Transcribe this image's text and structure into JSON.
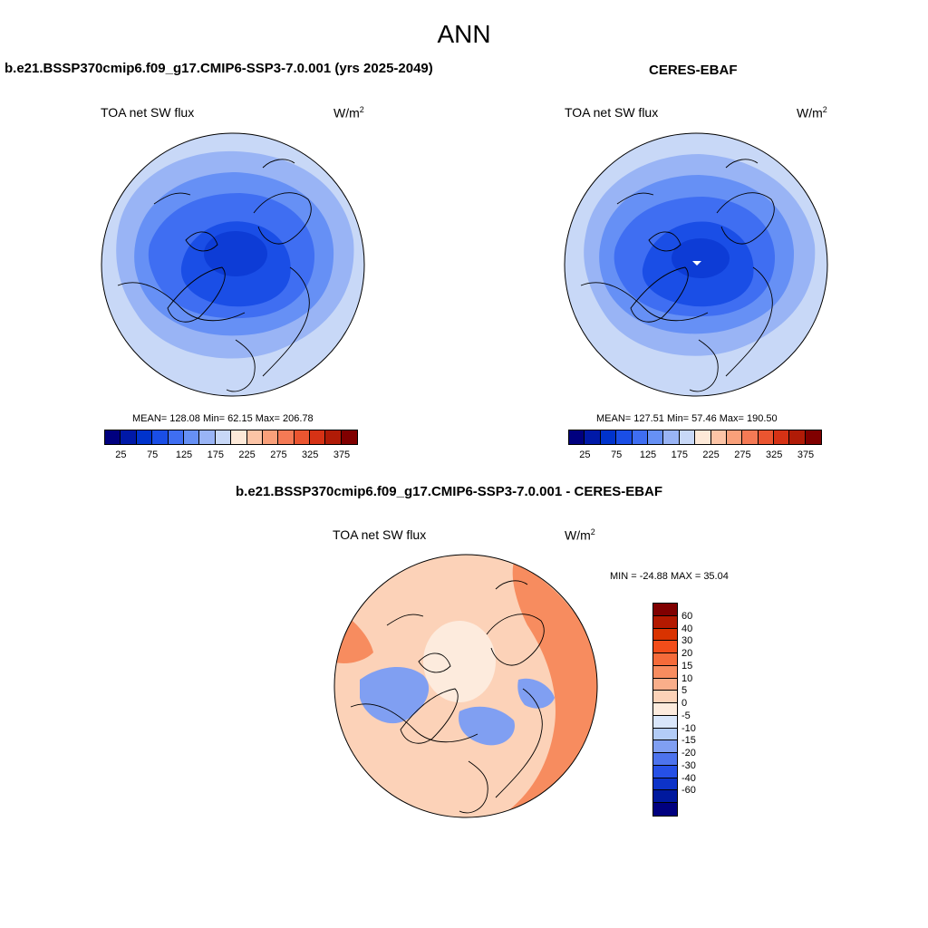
{
  "main_title": "ANN",
  "panels": {
    "model": {
      "title": "b.e21.BSSP370cmip6.f09_g17.CMIP6-SSP3-7.0.001 (yrs 2025-2049)",
      "variable": "TOA net SW flux",
      "units_base": "W/m",
      "units_exp": "2",
      "stats": "MEAN= 128.08  Min=  62.15  Max= 206.78"
    },
    "obs": {
      "title": "CERES-EBAF",
      "variable": "TOA net SW flux",
      "units_base": "W/m",
      "units_exp": "2",
      "stats": "MEAN= 127.51  Min=  57.46  Max= 190.50"
    },
    "diff": {
      "title": "b.e21.BSSP370cmip6.f09_g17.CMIP6-SSP3-7.0.001 - CERES-EBAF",
      "variable": "TOA net SW flux",
      "units_base": "W/m",
      "units_exp": "2",
      "stats": "MIN = -24.88 MAX =  35.04"
    }
  },
  "colorbar_abs": {
    "colors": [
      "#00007f",
      "#0019a8",
      "#0033cc",
      "#1a4ee6",
      "#3f6ef2",
      "#6690f5",
      "#99b4f5",
      "#c8d8f7",
      "#fde9d8",
      "#fcc4a6",
      "#f9a07a",
      "#f57a55",
      "#eb5530",
      "#d63215",
      "#b01b07",
      "#800000"
    ],
    "tick_labels": [
      "25",
      "75",
      "125",
      "175",
      "225",
      "275",
      "325",
      "375"
    ]
  },
  "colorbar_diff": {
    "colors": [
      "#800000",
      "#b31900",
      "#d93300",
      "#f24d1a",
      "#f56b3a",
      "#f78c5f",
      "#f9ae8a",
      "#fcd2b8",
      "#fdebdd",
      "#d9e6fa",
      "#b3ccf7",
      "#809ff2",
      "#4d73ed",
      "#2650e6",
      "#0d33c9",
      "#00199e",
      "#00007f"
    ],
    "tick_labels": [
      "60",
      "40",
      "30",
      "20",
      "15",
      "10",
      "5",
      "0",
      "-5",
      "-10",
      "-15",
      "-20",
      "-30",
      "-40",
      "-60"
    ]
  },
  "map_colors": {
    "abs_outer": "#c8d8f7",
    "abs_mid1": "#99b4f5",
    "abs_mid2": "#6690f5",
    "abs_inner": "#3f6ef2",
    "abs_core": "#1a4ee6",
    "abs_pole": "#0d3cd6",
    "diff_base": "#fcd2b8",
    "diff_pos": "#f78c5f",
    "diff_neg": "#809ff2",
    "diff_zero": "#fdebdd"
  }
}
